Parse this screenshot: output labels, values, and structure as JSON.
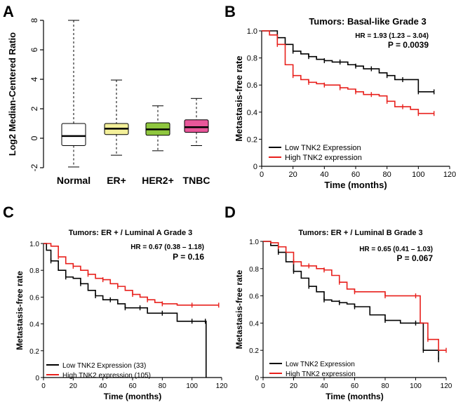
{
  "colors": {
    "black": "#000000",
    "red": "#e8201c",
    "normal_box": "#ffffff",
    "erp_box": "#f4f09a",
    "her2_box": "#8fc73e",
    "tnbc_box": "#e8579a"
  },
  "chart_data": [
    {
      "panel": "A",
      "type": "box",
      "ylabel": "Log2 Median-Centered Ratio",
      "ylim": [
        -2,
        8
      ],
      "yticks": [
        -2,
        0,
        2,
        4,
        6,
        8
      ],
      "ytick_labels": [
        "-2",
        "0",
        "2",
        "4",
        "6",
        "8"
      ],
      "categories": [
        "Normal",
        "ER+",
        "HER2+",
        "TNBC"
      ],
      "boxes": [
        {
          "name": "Normal",
          "min": -1.95,
          "q1": -0.5,
          "median": 0.15,
          "q3": 1.0,
          "max": 8.0,
          "color": "#ffffff"
        },
        {
          "name": "ER+",
          "min": -1.15,
          "q1": 0.25,
          "median": 0.65,
          "q3": 1.0,
          "max": 3.95,
          "color": "#f4f09a"
        },
        {
          "name": "HER2+",
          "min": -0.85,
          "q1": 0.2,
          "median": 0.6,
          "q3": 1.05,
          "max": 2.2,
          "color": "#8fc73e"
        },
        {
          "name": "TNBC",
          "min": -0.5,
          "q1": 0.4,
          "median": 0.75,
          "q3": 1.25,
          "max": 2.7,
          "color": "#e8579a"
        }
      ]
    },
    {
      "panel": "B",
      "type": "line",
      "title": "Tumors: Basal-like Grade 3",
      "hr_text": "HR = 1.93 (1.23 – 3.04)",
      "p_text": "P = 0.0039",
      "xlabel": "Time (months)",
      "ylabel": "Metastasis-free rate",
      "xlim": [
        0,
        120
      ],
      "ylim": [
        0,
        1
      ],
      "xticks": [
        0,
        20,
        40,
        60,
        80,
        100,
        120
      ],
      "yticks": [
        0,
        0.2,
        0.4,
        0.6,
        0.8,
        1.0
      ],
      "ytick_labels": [
        "0",
        "0.2",
        "0.4",
        "0.6",
        "0.8",
        "1.0"
      ],
      "series": [
        {
          "name": "Low TNK2 Expression",
          "color": "#000000",
          "x": [
            0,
            5,
            10,
            15,
            20,
            25,
            30,
            35,
            40,
            45,
            50,
            55,
            60,
            65,
            70,
            75,
            80,
            85,
            90,
            95,
            100,
            105,
            110
          ],
          "y": [
            1.0,
            1.0,
            0.95,
            0.9,
            0.85,
            0.83,
            0.81,
            0.79,
            0.78,
            0.77,
            0.77,
            0.75,
            0.74,
            0.72,
            0.72,
            0.69,
            0.67,
            0.64,
            0.64,
            0.64,
            0.55,
            0.55,
            0.55
          ]
        },
        {
          "name": "High TNK2 expression",
          "color": "#e8201c",
          "x": [
            0,
            5,
            10,
            15,
            20,
            25,
            30,
            35,
            40,
            45,
            50,
            55,
            60,
            65,
            70,
            75,
            80,
            85,
            90,
            95,
            100,
            105,
            110
          ],
          "y": [
            1.0,
            0.97,
            0.9,
            0.75,
            0.67,
            0.64,
            0.62,
            0.61,
            0.6,
            0.6,
            0.58,
            0.57,
            0.55,
            0.53,
            0.53,
            0.52,
            0.48,
            0.44,
            0.44,
            0.42,
            0.39,
            0.39,
            0.39
          ]
        }
      ],
      "legend": [
        "Low TNK2 Expression",
        "High TNK2 expression"
      ],
      "legend_placement": "bottom-left"
    },
    {
      "panel": "C",
      "type": "line",
      "title": "Tumors: ER + / Luminal A Grade 3",
      "hr_text": "HR = 0.67 (0.38 – 1.18)",
      "p_text": "P = 0.16",
      "xlabel": "Time (months)",
      "ylabel": "Metastasis-free rate",
      "xlim": [
        0,
        120
      ],
      "ylim": [
        0,
        1
      ],
      "xticks": [
        0,
        20,
        40,
        60,
        80,
        100,
        120
      ],
      "yticks": [
        0,
        0.2,
        0.4,
        0.6,
        0.8,
        1.0
      ],
      "ytick_labels": [
        "0",
        "0.2",
        "0.4",
        "0.6",
        "0.8",
        "1.0"
      ],
      "series": [
        {
          "name": "Low TNK2 Expression (33)",
          "color": "#000000",
          "x": [
            0,
            2,
            5,
            10,
            15,
            20,
            25,
            30,
            35,
            40,
            45,
            50,
            55,
            60,
            65,
            70,
            80,
            90,
            100,
            105,
            109,
            109.5
          ],
          "y": [
            1.0,
            0.95,
            0.87,
            0.8,
            0.75,
            0.74,
            0.7,
            0.65,
            0.61,
            0.58,
            0.58,
            0.55,
            0.52,
            0.52,
            0.52,
            0.48,
            0.48,
            0.42,
            0.42,
            0.42,
            0.42,
            0.0
          ]
        },
        {
          "name": "High TNK2 expression (105)",
          "color": "#e8201c",
          "x": [
            0,
            5,
            10,
            15,
            20,
            25,
            30,
            35,
            40,
            45,
            50,
            55,
            60,
            65,
            70,
            75,
            80,
            90,
            100,
            110,
            118
          ],
          "y": [
            1.0,
            0.98,
            0.9,
            0.85,
            0.83,
            0.8,
            0.77,
            0.74,
            0.73,
            0.7,
            0.68,
            0.65,
            0.62,
            0.6,
            0.58,
            0.56,
            0.55,
            0.54,
            0.54,
            0.54,
            0.54
          ]
        }
      ],
      "legend": [
        "Low TNK2 Expression (33)",
        "High TNK2 expression (105)"
      ],
      "legend_placement": "bottom-left"
    },
    {
      "panel": "D",
      "type": "line",
      "title": "Tumors: ER + / Luminal B Grade 3",
      "hr_text": "HR = 0.65 (0.41 – 1.03)",
      "p_text": "P = 0.067",
      "xlabel": "Time (months)",
      "ylabel": "Metastasis-free rate",
      "xlim": [
        0,
        120
      ],
      "ylim": [
        0,
        1
      ],
      "xticks": [
        0,
        20,
        40,
        60,
        80,
        100,
        120
      ],
      "yticks": [
        0,
        0.2,
        0.4,
        0.6,
        0.8,
        1.0
      ],
      "ytick_labels": [
        "0",
        "0.2",
        "0.4",
        "0.6",
        "0.8",
        "1.0"
      ],
      "series": [
        {
          "name": "Low TNK2 Expression",
          "color": "#000000",
          "x": [
            0,
            5,
            10,
            15,
            20,
            25,
            30,
            35,
            40,
            45,
            50,
            55,
            60,
            70,
            80,
            90,
            100,
            103,
            105,
            110,
            115
          ],
          "y": [
            1.0,
            0.97,
            0.92,
            0.85,
            0.78,
            0.73,
            0.67,
            0.63,
            0.57,
            0.56,
            0.55,
            0.54,
            0.52,
            0.46,
            0.42,
            0.4,
            0.4,
            0.4,
            0.2,
            0.2,
            0.13
          ]
        },
        {
          "name": "High TNK2 expression",
          "color": "#e8201c",
          "x": [
            0,
            5,
            10,
            15,
            20,
            25,
            30,
            35,
            40,
            45,
            50,
            55,
            60,
            70,
            80,
            90,
            100,
            103,
            108,
            115,
            120
          ],
          "y": [
            1.0,
            0.99,
            0.96,
            0.92,
            0.85,
            0.82,
            0.82,
            0.8,
            0.79,
            0.75,
            0.7,
            0.65,
            0.63,
            0.63,
            0.6,
            0.6,
            0.6,
            0.4,
            0.28,
            0.2,
            0.2
          ]
        }
      ],
      "legend": [
        "Low TNK2 Expression",
        "High TNK2 expression"
      ],
      "legend_placement": "bottom-left"
    }
  ]
}
